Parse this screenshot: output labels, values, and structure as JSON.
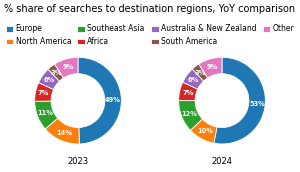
{
  "chart_data": {
    "type": "pie",
    "title": "% share of searches to destination regions, YoY comparison",
    "categories": [
      "Europe",
      "North America",
      "Southeast Asia",
      "Africa",
      "Australia & New Zealand",
      "South America",
      "Other"
    ],
    "series": [
      {
        "name": "2023",
        "values": [
          49,
          14,
          11,
          7,
          6,
          3,
          9
        ],
        "value_labels": [
          "49%",
          "14%",
          "11%",
          "7%",
          "6%",
          "3%",
          "9%"
        ]
      },
      {
        "name": "2024",
        "values": [
          53,
          10,
          12,
          7,
          6,
          3,
          9
        ],
        "value_labels": [
          "53%",
          "10%",
          "12%",
          "7%",
          "6%",
          "3%",
          "9%"
        ]
      }
    ],
    "data_labels": true,
    "legend": "upper center"
  }
}
